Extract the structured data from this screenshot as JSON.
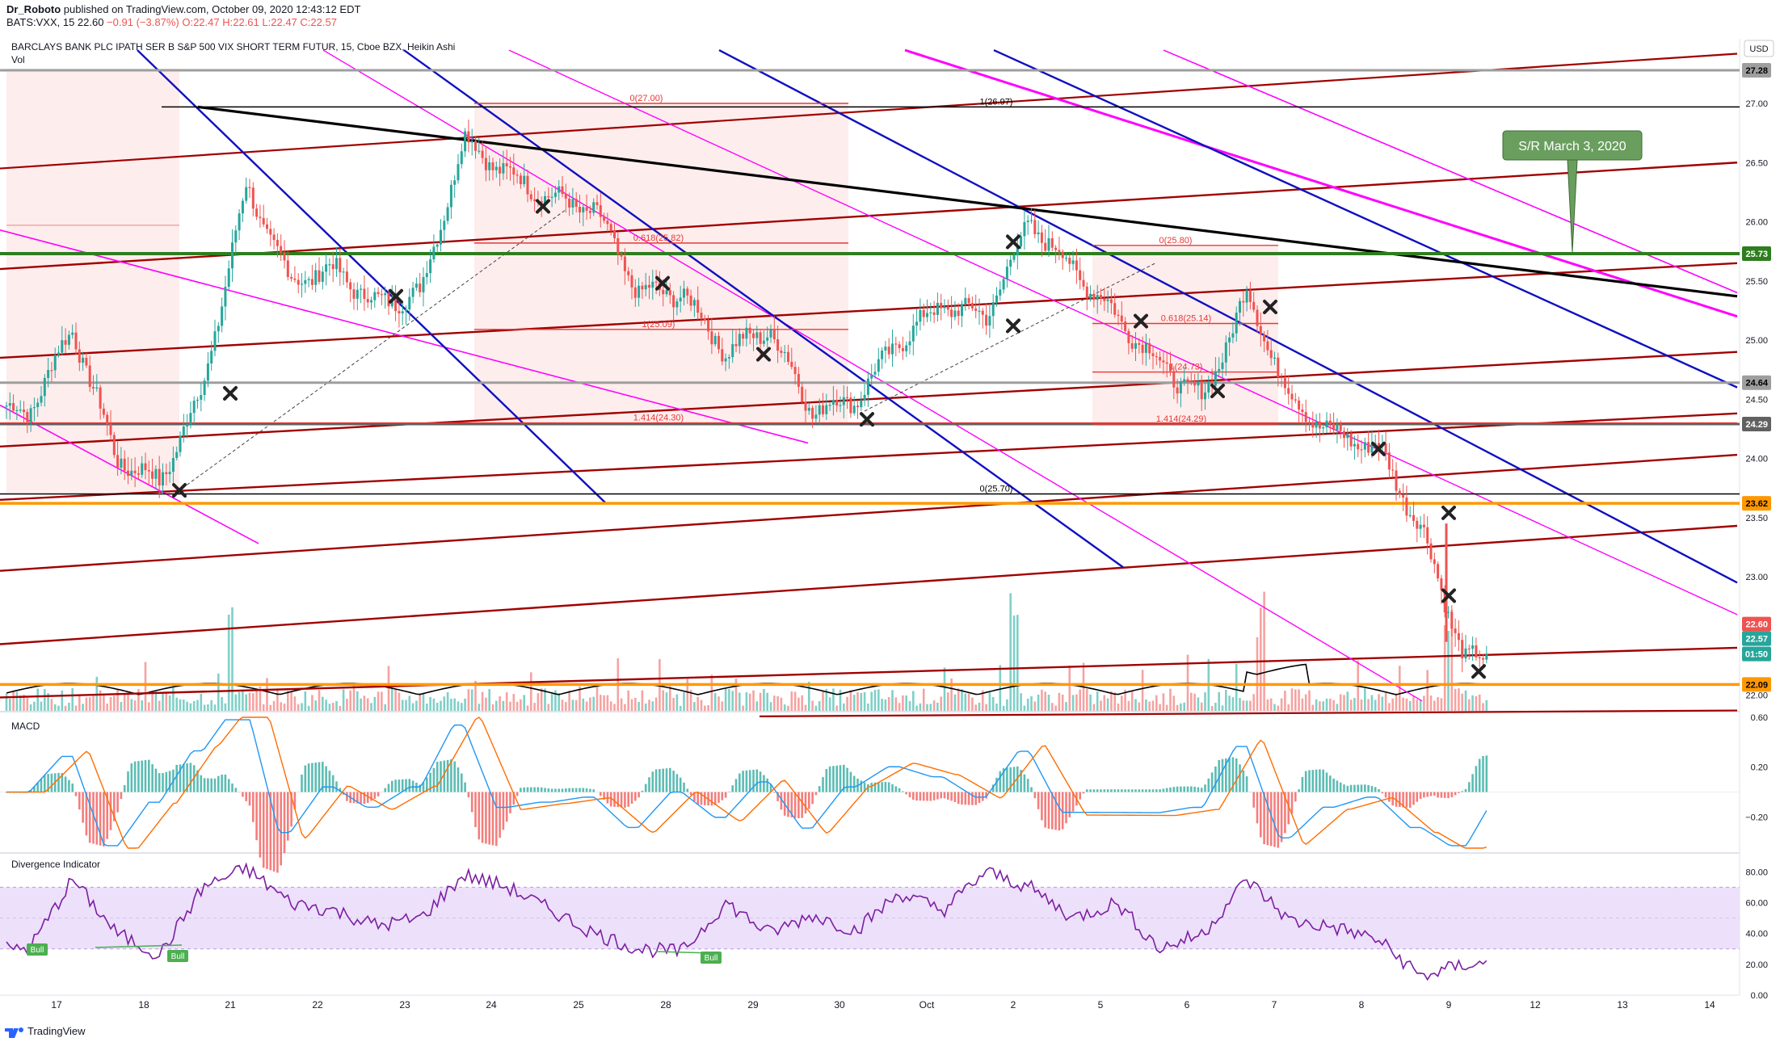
{
  "header": {
    "author": "Dr_Roboto",
    "published": "published on TradingView.com, October 09, 2020 12:43:12 EDT",
    "symbol": "BATS:VXX, 15",
    "last": "22.60",
    "change": "−0.91 (−3.87%)",
    "open": "O:22.47",
    "high": "H:22.61",
    "low": "L:22.47",
    "close": "C:22.57"
  },
  "legend": {
    "title": "BARCLAYS BANK PLC IPATH SER B S&P 500 VIX SHORT TERM FUTUR, 15, Cboe BZX, Heikin Ashi",
    "vol": "Vol",
    "macd": "MACD",
    "divergence": "Divergence Indicator"
  },
  "currency_button": "USD",
  "footer": {
    "brand": "TradingView"
  },
  "colors": {
    "up": "#26a69a",
    "down": "#ef5350",
    "maroon": "#a00000",
    "magenta": "#ff00ff",
    "blue": "#1010c0",
    "orange": "#ff9800",
    "green": "#2e7d1e",
    "gray": "#9e9e9e",
    "black": "#000000",
    "fib_red": "#e53935",
    "rsi_line": "#7b1fa2",
    "rsi_band": "#ede0fa",
    "macd_line": "#2196f3",
    "signal_line": "#ff6d00",
    "callout_bg": "#6a9e5e"
  },
  "chart_data": {
    "type": "candlestick",
    "price_axis": {
      "range": [
        21.8,
        27.45
      ],
      "ticks": [
        "27.00",
        "26.50",
        "26.00",
        "25.50",
        "25.00",
        "24.50",
        "24.00",
        "23.50",
        "23.00",
        "22.00"
      ],
      "tags": [
        {
          "value": "27.28",
          "price": 27.28,
          "bg": "#9e9e9e",
          "fg": "#000000"
        },
        {
          "value": "25.73",
          "price": 25.73,
          "bg": "#2e7d1e",
          "fg": "#ffffff"
        },
        {
          "value": "24.64",
          "price": 24.64,
          "bg": "#9e9e9e",
          "fg": "#000000"
        },
        {
          "value": "24.29",
          "price": 24.29,
          "bg": "#616161",
          "fg": "#ffffff"
        },
        {
          "value": "23.62",
          "price": 23.62,
          "bg": "#ff9800",
          "fg": "#000000"
        },
        {
          "value": "22.60",
          "price": 22.6,
          "bg": "#ef5350",
          "fg": "#ffffff"
        },
        {
          "value": "22.57",
          "price": 22.57,
          "bg": "#26a69a",
          "fg": "#ffffff"
        },
        {
          "value": "01:50",
          "price": 22.45,
          "bg": "#26a69a",
          "fg": "#ffffff"
        },
        {
          "value": "22.09",
          "price": 22.09,
          "bg": "#ff9800",
          "fg": "#000000"
        }
      ]
    },
    "x_axis": {
      "labels": [
        "17",
        "18",
        "21",
        "22",
        "23",
        "24",
        "25",
        "28",
        "29",
        "30",
        "Oct",
        "2",
        "5",
        "6",
        "7",
        "8",
        "9",
        "12",
        "13",
        "14"
      ]
    },
    "price_path": [
      [
        "17",
        24.4
      ],
      [
        "17",
        25.1
      ],
      [
        "18",
        24.0
      ],
      [
        "18",
        23.8
      ],
      [
        "21",
        24.6
      ],
      [
        "21",
        26.3
      ],
      [
        "22",
        25.5
      ],
      [
        "22",
        25.6
      ],
      [
        "23",
        25.3
      ],
      [
        "23",
        25.4
      ],
      [
        "24",
        26.7
      ],
      [
        "24",
        26.4
      ],
      [
        "25",
        26.2
      ],
      [
        "25",
        26.1
      ],
      [
        "28",
        25.4
      ],
      [
        "28",
        25.4
      ],
      [
        "29",
        24.9
      ],
      [
        "29",
        25.1
      ],
      [
        "30",
        24.4
      ],
      [
        "30",
        24.5
      ],
      [
        "Oct",
        25.0
      ],
      [
        "Oct",
        25.3
      ],
      [
        "2",
        25.2
      ],
      [
        "2",
        26.0
      ],
      [
        "5",
        25.6
      ],
      [
        "5",
        25.2
      ],
      [
        "6",
        24.8
      ],
      [
        "6",
        24.5
      ],
      [
        "7",
        25.4
      ],
      [
        "7",
        24.5
      ],
      [
        "8",
        24.2
      ],
      [
        "8",
        24.1
      ],
      [
        "9",
        23.4
      ],
      [
        "9",
        22.3
      ]
    ],
    "horizontal_levels": [
      {
        "price": 27.28,
        "color": "#9e9e9e"
      },
      {
        "price": 25.73,
        "color": "#2e7d1e"
      },
      {
        "price": 24.64,
        "color": "#9e9e9e"
      },
      {
        "price": 24.29,
        "color": "#616161"
      },
      {
        "price": 23.62,
        "color": "#ff9800"
      },
      {
        "price": 22.09,
        "color": "#ff9800"
      }
    ],
    "fib_labels": [
      {
        "text": "0(27.00)"
      },
      {
        "text": "0.618(25.82)"
      },
      {
        "text": "1(25.09)"
      },
      {
        "text": "1.414(24.30)"
      },
      {
        "text": "1(26.97)"
      },
      {
        "text": "0(25.70)"
      },
      {
        "text": "0(25.80)"
      },
      {
        "text": "0.618(25.14)"
      },
      {
        "text": "1(24.73)"
      },
      {
        "text": "1.414(24.29)"
      }
    ],
    "callout": {
      "text": "S/R March 3, 2020",
      "target_price": 25.73
    },
    "macd": {
      "axis_ticks": [
        "0.60",
        "0.20",
        "−0.20"
      ],
      "range": [
        -0.45,
        0.6
      ]
    },
    "divergence": {
      "axis_ticks": [
        "80.00",
        "60.00",
        "40.00",
        "20.00",
        "0.00"
      ],
      "range": [
        0,
        88
      ],
      "band": [
        30,
        70
      ],
      "rsi": [
        [
          "17",
          30
        ],
        [
          "17",
          75
        ],
        [
          "18",
          40
        ],
        [
          "18",
          26
        ],
        [
          "21",
          70
        ],
        [
          "21",
          82
        ],
        [
          "22",
          60
        ],
        [
          "22",
          55
        ],
        [
          "23",
          45
        ],
        [
          "23",
          50
        ],
        [
          "24",
          78
        ],
        [
          "24",
          70
        ],
        [
          "25",
          55
        ],
        [
          "25",
          40
        ],
        [
          "28",
          30
        ],
        [
          "28",
          28
        ],
        [
          "29",
          60
        ],
        [
          "29",
          40
        ],
        [
          "30",
          52
        ],
        [
          "30",
          42
        ],
        [
          "Oct",
          66
        ],
        [
          "Oct",
          55
        ],
        [
          "2",
          80
        ],
        [
          "2",
          70
        ],
        [
          "5",
          50
        ],
        [
          "5",
          60
        ],
        [
          "6",
          30
        ],
        [
          "6",
          40
        ],
        [
          "7",
          75
        ],
        [
          "7",
          48
        ],
        [
          "8",
          44
        ],
        [
          "8",
          36
        ],
        [
          "9",
          12
        ],
        [
          "9",
          20
        ]
      ],
      "bull_labels": [
        "Bull",
        "Bull",
        "Bull"
      ]
    }
  }
}
